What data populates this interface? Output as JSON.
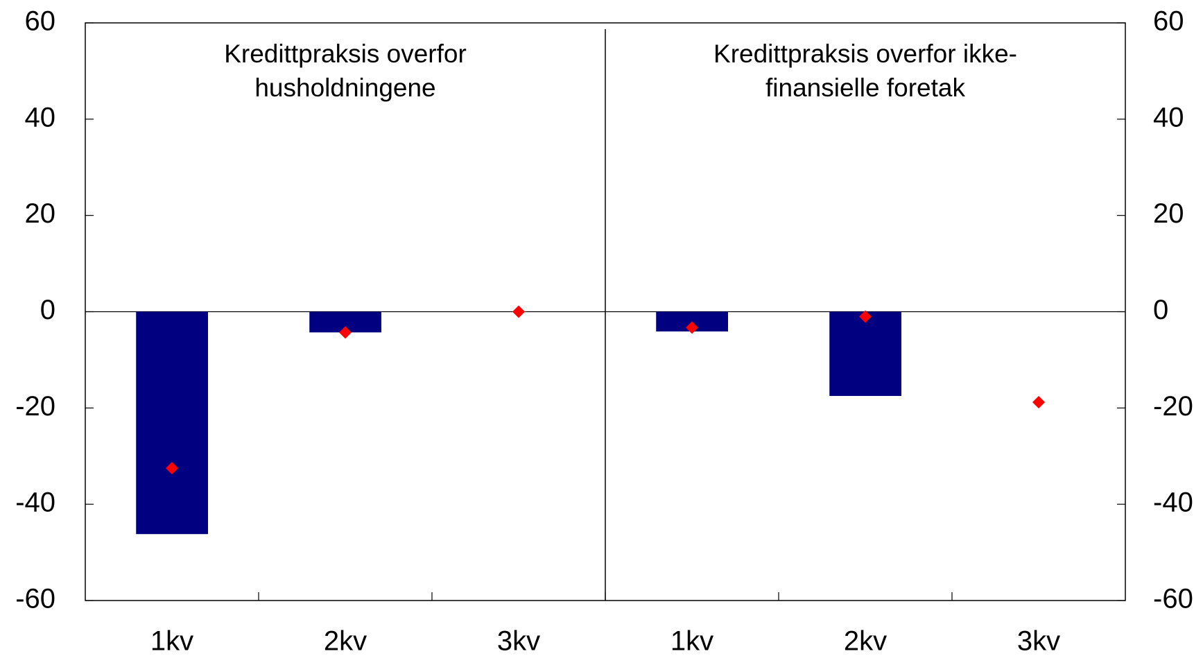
{
  "chart_data": {
    "type": "bar",
    "categories": [
      "1kv",
      "2kv",
      "3kv",
      "1kv",
      "2kv",
      "3kv"
    ],
    "panel_titles": [
      [
        "Kredittpraksis overfor",
        "husholdningene"
      ],
      [
        "Kredittpraksis overfor ikke-",
        "finansielle foretak"
      ]
    ],
    "series": [
      {
        "type": "bar",
        "color": "#000080",
        "values": [
          -46.2,
          -4.3,
          null,
          -4.1,
          -17.5,
          null
        ]
      },
      {
        "type": "scatter",
        "color": "#ff0000",
        "values": [
          -32.5,
          -4.3,
          0,
          -3.3,
          -1,
          -18.8
        ]
      }
    ],
    "ylim": [
      -60,
      60
    ],
    "yticks": [
      -60,
      -40,
      -20,
      0,
      20,
      40,
      60
    ],
    "y2lim": [
      -60,
      60
    ],
    "y2ticks": [
      -60,
      -40,
      -20,
      0,
      20,
      40,
      60
    ]
  }
}
